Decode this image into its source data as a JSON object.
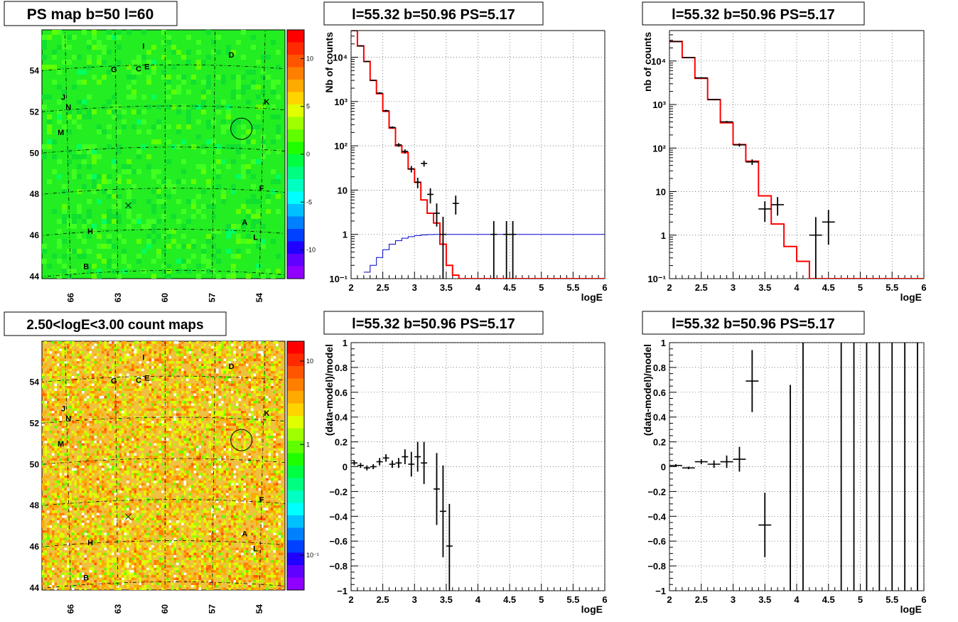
{
  "map_top": {
    "title": "PS map b=50 l=60",
    "colorbar_ticks": [
      "10",
      "5",
      "0",
      "-5",
      "-10"
    ],
    "colorbar_colors": [
      "#ff0000",
      "#ff2a00",
      "#ff5500",
      "#ff8000",
      "#ffaa00",
      "#ffd400",
      "#e0ff00",
      "#a0ff00",
      "#60ff00",
      "#20ff00",
      "#00ff40",
      "#00ff80",
      "#00ffc0",
      "#00ffff",
      "#00c0ff",
      "#0080ff",
      "#0040ff",
      "#2000ff",
      "#6000ff",
      "#9000ff"
    ],
    "base_color": "#22ee22"
  },
  "map_bottom": {
    "title": "2.50<logE<3.00 count maps",
    "colorbar_ticks": [
      "10",
      "1",
      "10⁻¹"
    ],
    "colorbar_colors": [
      "#ff0000",
      "#ff2a00",
      "#ff5500",
      "#ff8000",
      "#ffaa00",
      "#ffd400",
      "#e0ff00",
      "#a0ff00",
      "#60ff00",
      "#20ff00",
      "#00ff40",
      "#00ff80",
      "#00ffc0",
      "#00ffff",
      "#00c0ff",
      "#0080ff",
      "#0040ff",
      "#2000ff",
      "#6000ff",
      "#9000ff"
    ],
    "base_color": "#f0c040"
  },
  "map_axes": {
    "x_ticks": [
      "66",
      "63",
      "60",
      "57",
      "54"
    ],
    "y_ticks": [
      "54",
      "52",
      "50",
      "48",
      "46",
      "44"
    ]
  },
  "source_labels": [
    {
      "name": "I",
      "l": 61.3,
      "b": 54.8
    },
    {
      "name": "D",
      "l": 56.0,
      "b": 54.4
    },
    {
      "name": "G",
      "l": 63.1,
      "b": 53.7
    },
    {
      "name": "C",
      "l": 61.6,
      "b": 53.7
    },
    {
      "name": "E",
      "l": 61.1,
      "b": 53.8
    },
    {
      "name": "J",
      "l": 66.2,
      "b": 52.5
    },
    {
      "name": "K",
      "l": 53.8,
      "b": 52.2
    },
    {
      "name": "N",
      "l": 65.9,
      "b": 52.0
    },
    {
      "name": "M",
      "l": 66.4,
      "b": 50.8
    },
    {
      "name": "F",
      "l": 54.0,
      "b": 48.0
    },
    {
      "name": "A",
      "l": 55.0,
      "b": 46.3
    },
    {
      "name": "H",
      "l": 64.7,
      "b": 45.9
    },
    {
      "name": "L",
      "l": 54.3,
      "b": 45.6
    },
    {
      "name": "B",
      "l": 65.0,
      "b": 44.2
    }
  ],
  "chart_data": [
    {
      "type": "line",
      "title": "l=55.32 b=50.96 PS=5.17",
      "xlabel": "logE",
      "ylabel": "Nb of counts",
      "xlim": [
        2,
        6
      ],
      "ylim": [
        0.1,
        40000
      ],
      "yscale": "log",
      "grid": true,
      "x_ticks": [
        "2",
        "2.5",
        "3",
        "3.5",
        "4",
        "4.5",
        "5",
        "5.5",
        "6"
      ],
      "y_ticks": [
        {
          "v": 0.1,
          "t": "10⁻¹"
        },
        {
          "v": 1,
          "t": "1"
        },
        {
          "v": 10,
          "t": "10"
        },
        {
          "v": 100,
          "t": "10²"
        },
        {
          "v": 1000,
          "t": "10³"
        },
        {
          "v": 10000,
          "t": "10⁴"
        }
      ],
      "model_color": "#ff0000",
      "psf_color": "#0000cc",
      "model_edges": [
        2,
        2.1,
        2.2,
        2.3,
        2.4,
        2.5,
        2.6,
        2.7,
        2.8,
        2.9,
        3.0,
        3.1,
        3.2,
        3.3,
        3.4,
        3.5,
        3.6,
        3.7,
        3.8,
        3.9,
        4.0,
        4.1,
        4.2,
        4.3,
        4.4,
        4.5,
        4.6,
        4.7,
        4.8,
        4.9,
        5.0,
        5.1,
        5.2,
        5.3,
        5.4,
        5.5,
        5.6,
        5.7,
        5.8,
        5.9,
        6.0
      ],
      "model_values": [
        40000,
        18000,
        8000,
        3000,
        1500,
        600,
        250,
        100,
        70,
        30,
        15,
        6,
        3,
        1.8,
        0.6,
        0.2,
        0.12,
        0.1,
        0.1,
        0.1,
        0.1,
        0.1,
        0.1,
        0.1,
        0.1,
        0.1,
        0.1,
        0.1,
        0.1,
        0.1,
        0.1,
        0.1,
        0.1,
        0.1,
        0.1,
        0.1,
        0.1,
        0.1,
        0.1,
        0.1
      ],
      "psf_edges": [
        2.2,
        2.3,
        2.4,
        2.5,
        2.6,
        2.7,
        2.8,
        2.9,
        3.0,
        3.1,
        3.2,
        3.3,
        3.4,
        3.5,
        3.6,
        3.7,
        3.8,
        3.9,
        4.0,
        6.0
      ],
      "psf_values": [
        0.14,
        0.2,
        0.3,
        0.45,
        0.6,
        0.72,
        0.82,
        0.89,
        0.94,
        0.97,
        0.99,
        1.0,
        1.0,
        1.0,
        1.0,
        1.0,
        1.0,
        1.0,
        1.0
      ],
      "points": [
        {
          "x": 2.05,
          "y": 40000,
          "xe": 0.05,
          "lo": 39000,
          "hi": 41000
        },
        {
          "x": 2.15,
          "y": 18000,
          "xe": 0.05,
          "lo": 17500,
          "hi": 18500
        },
        {
          "x": 2.25,
          "y": 8000,
          "xe": 0.05,
          "lo": 7800,
          "hi": 8200
        },
        {
          "x": 2.35,
          "y": 3000,
          "xe": 0.05,
          "lo": 2900,
          "hi": 3100
        },
        {
          "x": 2.45,
          "y": 1550,
          "xe": 0.05,
          "lo": 1480,
          "hi": 1620
        },
        {
          "x": 2.55,
          "y": 620,
          "xe": 0.05,
          "lo": 590,
          "hi": 650
        },
        {
          "x": 2.65,
          "y": 260,
          "xe": 0.05,
          "lo": 245,
          "hi": 275
        },
        {
          "x": 2.75,
          "y": 105,
          "xe": 0.05,
          "lo": 95,
          "hi": 115
        },
        {
          "x": 2.85,
          "y": 75,
          "xe": 0.05,
          "lo": 67,
          "hi": 83
        },
        {
          "x": 2.95,
          "y": 30,
          "xe": 0.05,
          "lo": 25,
          "hi": 35
        },
        {
          "x": 3.05,
          "y": 15,
          "xe": 0.05,
          "lo": 11,
          "hi": 19
        },
        {
          "x": 3.15,
          "y": 40,
          "xe": 0.05,
          "lo": 34,
          "hi": 46
        },
        {
          "x": 3.25,
          "y": 8,
          "xe": 0.05,
          "lo": 5,
          "hi": 11
        },
        {
          "x": 3.35,
          "y": 3,
          "xe": 0.05,
          "lo": 1.5,
          "hi": 5
        },
        {
          "x": 3.45,
          "y": 1,
          "xe": 0.05,
          "lo": 0.1,
          "hi": 2.5
        },
        {
          "x": 3.65,
          "y": 5,
          "xe": 0.05,
          "lo": 2.8,
          "hi": 7.5
        },
        {
          "x": 4.25,
          "y": 1,
          "xe": 0.05,
          "lo": 0.1,
          "hi": 2.0
        },
        {
          "x": 4.45,
          "y": 1,
          "xe": 0.05,
          "lo": 0.1,
          "hi": 2.0
        },
        {
          "x": 4.55,
          "y": 1,
          "xe": 0.05,
          "lo": 0.1,
          "hi": 2.0
        }
      ]
    },
    {
      "type": "line",
      "title": "l=55.32 b=50.96 PS=5.17",
      "xlabel": "logE",
      "ylabel": "nb of counts",
      "xlim": [
        2,
        6
      ],
      "ylim": [
        0.1,
        50000
      ],
      "yscale": "log",
      "grid": true,
      "x_ticks": [
        "2",
        "2.5",
        "3",
        "3.5",
        "4",
        "4.5",
        "5",
        "5.5",
        "6"
      ],
      "y_ticks": [
        {
          "v": 0.1,
          "t": "10⁻¹"
        },
        {
          "v": 1,
          "t": "1"
        },
        {
          "v": 10,
          "t": "10"
        },
        {
          "v": 100,
          "t": "10²"
        },
        {
          "v": 1000,
          "t": "10³"
        },
        {
          "v": 10000,
          "t": "10⁴"
        }
      ],
      "model_color": "#ff0000",
      "model_edges": [
        2,
        2.2,
        2.4,
        2.6,
        2.8,
        3.0,
        3.2,
        3.4,
        3.6,
        3.8,
        4.0,
        4.2,
        4.4,
        4.6,
        4.8,
        5.0,
        5.2,
        5.4,
        5.6,
        5.8,
        6.0
      ],
      "model_values": [
        28000,
        12000,
        4000,
        1300,
        380,
        120,
        50,
        8,
        1.8,
        0.55,
        0.25,
        0.1,
        0.1,
        0.1,
        0.1,
        0.1,
        0.1,
        0.1,
        0.1,
        0.1
      ],
      "points": [
        {
          "x": 2.1,
          "y": 28000,
          "xe": 0.1,
          "lo": 27500,
          "hi": 28500
        },
        {
          "x": 2.3,
          "y": 12000,
          "xe": 0.1,
          "lo": 11800,
          "hi": 12200
        },
        {
          "x": 2.5,
          "y": 4100,
          "xe": 0.1,
          "lo": 4000,
          "hi": 4200
        },
        {
          "x": 2.7,
          "y": 1300,
          "xe": 0.1,
          "lo": 1260,
          "hi": 1340
        },
        {
          "x": 2.9,
          "y": 400,
          "xe": 0.1,
          "lo": 380,
          "hi": 420
        },
        {
          "x": 3.1,
          "y": 118,
          "xe": 0.1,
          "lo": 108,
          "hi": 128
        },
        {
          "x": 3.3,
          "y": 48,
          "xe": 0.1,
          "lo": 41,
          "hi": 55
        },
        {
          "x": 3.5,
          "y": 4,
          "xe": 0.1,
          "lo": 2,
          "hi": 6
        },
        {
          "x": 3.7,
          "y": 5,
          "xe": 0.1,
          "lo": 2.8,
          "hi": 7.5
        },
        {
          "x": 4.3,
          "y": 1,
          "xe": 0.1,
          "lo": 0.1,
          "hi": 2.6
        },
        {
          "x": 4.5,
          "y": 2,
          "xe": 0.1,
          "lo": 0.6,
          "hi": 3.8
        }
      ]
    },
    {
      "type": "scatter",
      "title": "l=55.32 b=50.96 PS=5.17",
      "xlabel": "logE",
      "ylabel": "(data-model)/model",
      "xlim": [
        2,
        6
      ],
      "ylim": [
        -1,
        1
      ],
      "grid": true,
      "x_ticks": [
        "2",
        "2.5",
        "3",
        "3.5",
        "4",
        "4.5",
        "5",
        "5.5",
        "6"
      ],
      "y_ticks": [
        {
          "v": 1,
          "t": "1"
        },
        {
          "v": 0.8,
          "t": "0.8"
        },
        {
          "v": 0.6,
          "t": "0.6"
        },
        {
          "v": 0.4,
          "t": "0.4"
        },
        {
          "v": 0.2,
          "t": "0.2"
        },
        {
          "v": 0,
          "t": "0"
        },
        {
          "v": -0.2,
          "t": "−0.2"
        },
        {
          "v": -0.4,
          "t": "−0.4"
        },
        {
          "v": -0.6,
          "t": "−0.6"
        },
        {
          "v": -0.8,
          "t": "−0.8"
        },
        {
          "v": -1,
          "t": "−1"
        }
      ],
      "points": [
        {
          "x": 2.05,
          "y": 0.03,
          "xe": 0.05,
          "lo": 0.01,
          "hi": 0.05
        },
        {
          "x": 2.15,
          "y": 0.01,
          "xe": 0.05,
          "lo": -0.01,
          "hi": 0.03
        },
        {
          "x": 2.25,
          "y": -0.01,
          "xe": 0.05,
          "lo": -0.03,
          "hi": 0.01
        },
        {
          "x": 2.35,
          "y": 0.0,
          "xe": 0.05,
          "lo": -0.02,
          "hi": 0.02
        },
        {
          "x": 2.45,
          "y": 0.04,
          "xe": 0.05,
          "lo": 0.01,
          "hi": 0.07
        },
        {
          "x": 2.55,
          "y": 0.07,
          "xe": 0.05,
          "lo": 0.04,
          "hi": 0.1
        },
        {
          "x": 2.65,
          "y": 0.02,
          "xe": 0.05,
          "lo": -0.01,
          "hi": 0.05
        },
        {
          "x": 2.75,
          "y": 0.03,
          "xe": 0.05,
          "lo": -0.01,
          "hi": 0.07
        },
        {
          "x": 2.85,
          "y": 0.08,
          "xe": 0.05,
          "lo": 0.02,
          "hi": 0.14
        },
        {
          "x": 2.95,
          "y": 0.02,
          "xe": 0.05,
          "lo": -0.08,
          "hi": 0.12
        },
        {
          "x": 3.05,
          "y": 0.08,
          "xe": 0.05,
          "lo": -0.04,
          "hi": 0.2
        },
        {
          "x": 3.15,
          "y": 0.03,
          "xe": 0.05,
          "lo": -0.14,
          "hi": 0.2
        },
        {
          "x": 3.35,
          "y": -0.18,
          "xe": 0.05,
          "lo": -0.47,
          "hi": 0.11
        },
        {
          "x": 3.45,
          "y": -0.36,
          "xe": 0.05,
          "lo": -0.73,
          "hi": 0.01
        },
        {
          "x": 3.55,
          "y": -0.64,
          "xe": 0.05,
          "lo": -1.0,
          "hi": -0.3
        }
      ]
    },
    {
      "type": "scatter",
      "title": "l=55.32 b=50.96 PS=5.17",
      "xlabel": "logE",
      "ylabel": "(data-model)/model",
      "xlim": [
        2,
        6
      ],
      "ylim": [
        -1,
        1
      ],
      "grid": true,
      "x_ticks": [
        "2",
        "2.5",
        "3",
        "3.5",
        "4",
        "4.5",
        "5",
        "5.5",
        "6"
      ],
      "y_ticks": [
        {
          "v": 1,
          "t": "1"
        },
        {
          "v": 0.8,
          "t": "0.8"
        },
        {
          "v": 0.6,
          "t": "0.6"
        },
        {
          "v": 0.4,
          "t": "0.4"
        },
        {
          "v": 0.2,
          "t": "0.2"
        },
        {
          "v": 0,
          "t": "0"
        },
        {
          "v": -0.2,
          "t": "−0.2"
        },
        {
          "v": -0.4,
          "t": "−0.4"
        },
        {
          "v": -0.6,
          "t": "−0.6"
        },
        {
          "v": -0.8,
          "t": "−0.8"
        },
        {
          "v": -1,
          "t": "−1"
        }
      ],
      "points": [
        {
          "x": 2.1,
          "y": 0.01,
          "xe": 0.1,
          "lo": 0.0,
          "hi": 0.02
        },
        {
          "x": 2.3,
          "y": -0.01,
          "xe": 0.1,
          "lo": -0.02,
          "hi": 0.0
        },
        {
          "x": 2.5,
          "y": 0.04,
          "xe": 0.1,
          "lo": 0.02,
          "hi": 0.06
        },
        {
          "x": 2.7,
          "y": 0.02,
          "xe": 0.1,
          "lo": -0.01,
          "hi": 0.05
        },
        {
          "x": 2.9,
          "y": 0.04,
          "xe": 0.1,
          "lo": -0.01,
          "hi": 0.09
        },
        {
          "x": 3.1,
          "y": 0.06,
          "xe": 0.1,
          "lo": -0.04,
          "hi": 0.16
        },
        {
          "x": 3.3,
          "y": 0.69,
          "xe": 0.1,
          "lo": 0.44,
          "hi": 0.94
        },
        {
          "x": 3.5,
          "y": -0.47,
          "xe": 0.1,
          "lo": -0.73,
          "hi": -0.21
        },
        {
          "x": 3.9,
          "y": -1.0,
          "xe": 0,
          "lo": -1.0,
          "hi": 0.66
        },
        {
          "x": 4.1,
          "y": -1.0,
          "xe": 0,
          "lo": -1.0,
          "hi": 1.0
        },
        {
          "x": 4.7,
          "y": -1.0,
          "xe": 0,
          "lo": -1.0,
          "hi": 1.0
        },
        {
          "x": 4.9,
          "y": -1.0,
          "xe": 0,
          "lo": -1.0,
          "hi": 1.0
        },
        {
          "x": 5.1,
          "y": -1.0,
          "xe": 0,
          "lo": -1.0,
          "hi": 1.0
        },
        {
          "x": 5.3,
          "y": -1.0,
          "xe": 0,
          "lo": -1.0,
          "hi": 1.0
        },
        {
          "x": 5.5,
          "y": -1.0,
          "xe": 0,
          "lo": -1.0,
          "hi": 1.0
        },
        {
          "x": 5.7,
          "y": -1.0,
          "xe": 0,
          "lo": -1.0,
          "hi": 1.0
        },
        {
          "x": 5.9,
          "y": -1.0,
          "xe": 0,
          "lo": -1.0,
          "hi": 1.0
        }
      ]
    }
  ]
}
